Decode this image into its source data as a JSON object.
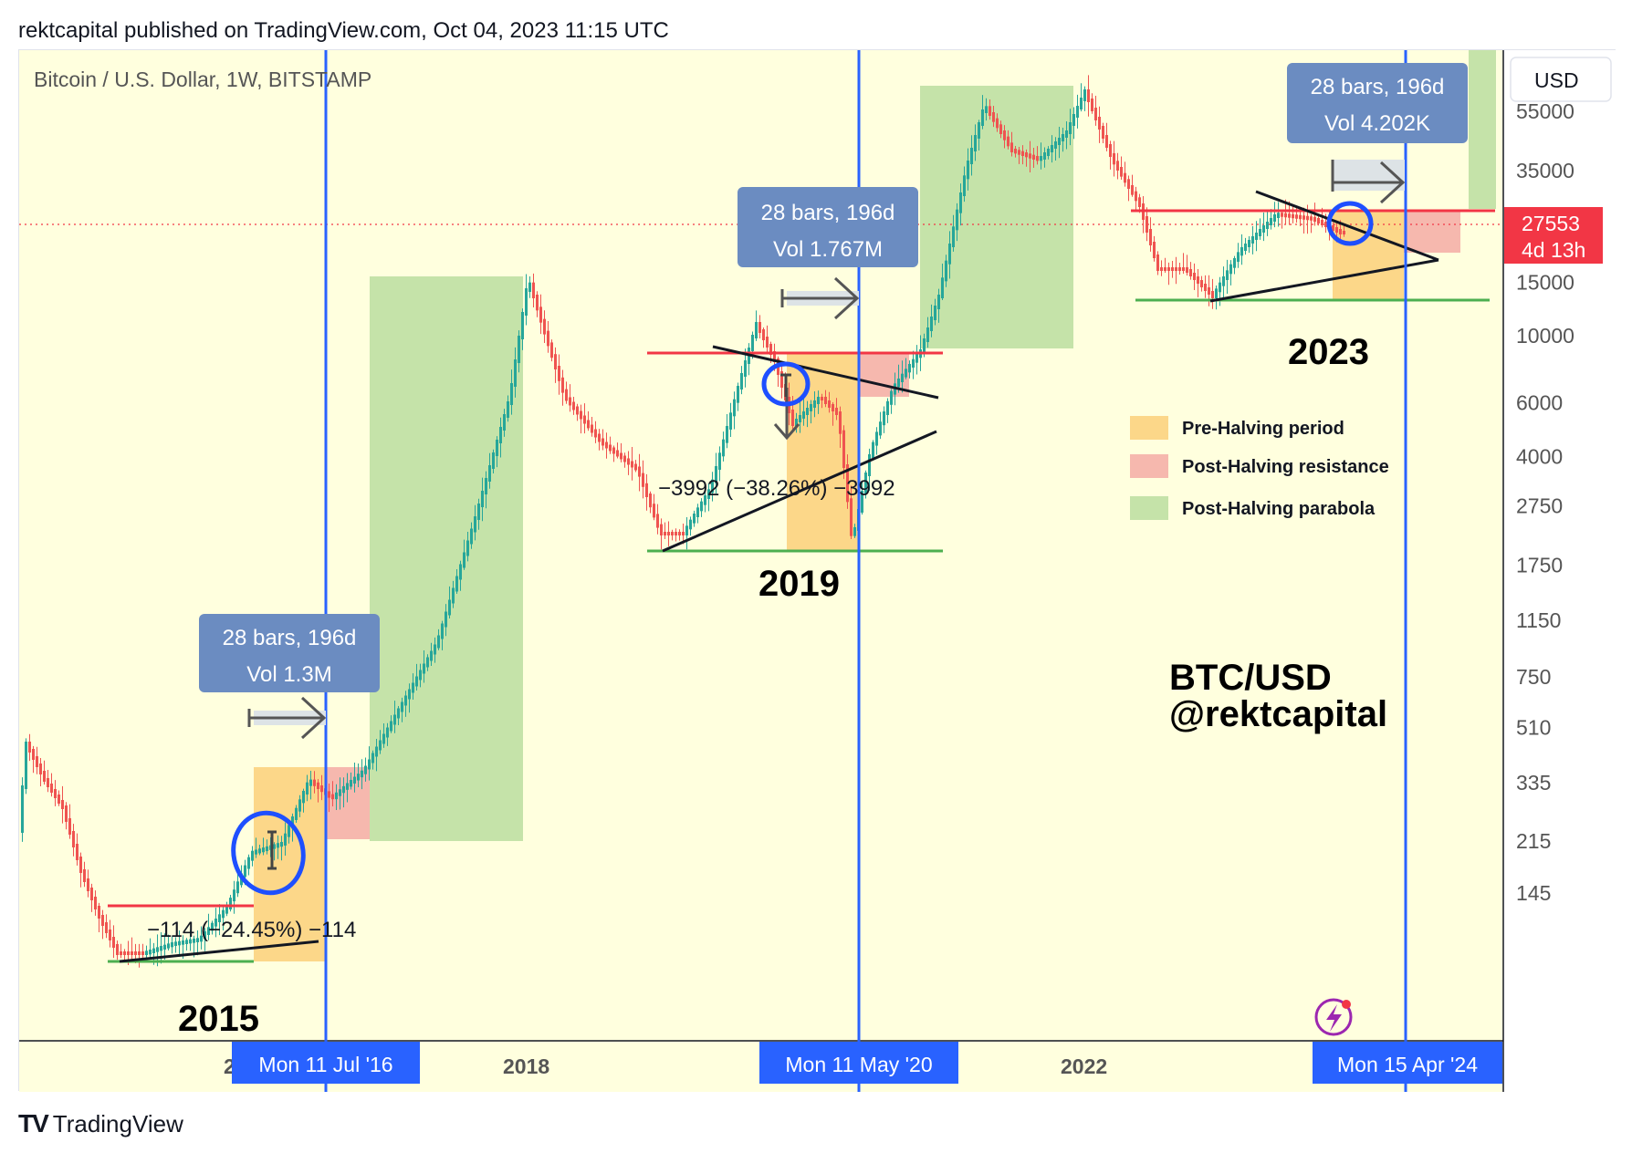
{
  "header": {
    "published_line": "rektcapital published on TradingView.com, Oct 04, 2023 11:15 UTC"
  },
  "chart": {
    "symbol_line": "Bitcoin / U.S. Dollar, 1W, BITSTAMP",
    "currency_button": "USD",
    "price_scale_ticks": [
      "55000",
      "35000",
      "15000",
      "10000",
      "6000",
      "4000",
      "2750",
      "1750",
      "1150",
      "750",
      "510",
      "335",
      "215",
      "145"
    ],
    "current_price_tag": {
      "price": "27553",
      "countdown": "4d 13h"
    },
    "time_axis_labels": [
      "2",
      "2018",
      "2022"
    ],
    "vertical_line_labels": [
      "Mon 11 Jul '16",
      "Mon 11 May '20",
      "Mon 15 Apr '24"
    ],
    "measure_boxes": [
      {
        "bars": "28 bars, 196d",
        "vol": "Vol 1.3M"
      },
      {
        "bars": "28 bars, 196d",
        "vol": "Vol 1.767M"
      },
      {
        "bars": "28 bars, 196d",
        "vol": "Vol 4.202K"
      }
    ],
    "drop_labels": [
      "−114 (−24.45%) −114",
      "−3992 (−38.26%) −3992"
    ],
    "cycle_years": [
      "2015",
      "2019",
      "2023"
    ],
    "legend": {
      "pre_halving": "Pre-Halving period",
      "post_resistance": "Post-Halving resistance",
      "post_parabola": "Post-Halving parabola"
    },
    "watermark": {
      "line1": "BTC/USD",
      "line2": "@rektcapital"
    },
    "colors": {
      "background": "#ffffde",
      "halving_line": "#2962ff",
      "pre_halving": "#fcd789",
      "post_resistance": "#f6b8ae",
      "post_parabola": "#c5e3a9",
      "resistance_line": "#f23645",
      "support_line": "#4caf50",
      "candle_up": "#26a69a",
      "candle_down": "#ef5350",
      "measure_box": "#6b8cc1",
      "circle": "#1e4fff"
    }
  },
  "footer": {
    "brand": "TradingView",
    "logo_icon": "tradingview-logo-icon"
  }
}
